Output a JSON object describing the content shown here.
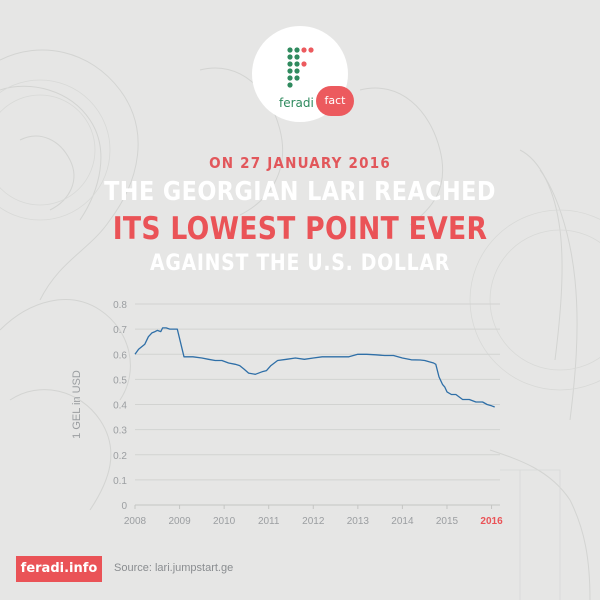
{
  "brand": {
    "logo_text": "feradi",
    "badge": "fact",
    "footer_label": "feradi.info"
  },
  "headline": {
    "date_line": "ON 27 JANUARY 2016",
    "line1": "THE GEORGIAN LARI REACHED",
    "line2": "ITS LOWEST POINT EVER",
    "line3": "AGAINST THE U.S. DOLLAR"
  },
  "source": "Source: lari.jumpstart.ge",
  "colors": {
    "accent": "#ea5357",
    "line": "#2f6fa7",
    "logo_green": "#2f8a5e",
    "background": "#e6e6e5"
  },
  "chart_data": {
    "type": "line",
    "xlabel": "",
    "ylabel": "1 GEL in USD",
    "xlim": [
      2008,
      2016.1
    ],
    "ylim": [
      0,
      0.8
    ],
    "x_ticks": [
      "2008",
      "2009",
      "2010",
      "2011",
      "2012",
      "2013",
      "2014",
      "2015",
      "2016"
    ],
    "y_ticks": [
      "0",
      "0.1",
      "0.2",
      "0.3",
      "0.4",
      "0.5",
      "0.6",
      "0.7",
      "0.8"
    ],
    "highlight_tick": "2016",
    "grid": true,
    "series": [
      {
        "x": [
          2008.0,
          2008.08,
          2008.15,
          2008.22,
          2008.3,
          2008.38,
          2008.45,
          2008.5,
          2008.58,
          2008.62,
          2008.7,
          2008.78,
          2008.85,
          2008.95,
          2009.1,
          2009.3,
          2009.5,
          2009.65,
          2009.8,
          2009.95,
          2010.1,
          2010.25,
          2010.35,
          2010.45,
          2010.55,
          2010.7,
          2010.85,
          2010.95,
          2011.05,
          2011.2,
          2011.4,
          2011.6,
          2011.8,
          2012.0,
          2012.2,
          2012.4,
          2012.6,
          2012.8,
          2013.0,
          2013.2,
          2013.4,
          2013.6,
          2013.8,
          2014.0,
          2014.2,
          2014.4,
          2014.5,
          2014.6,
          2014.7,
          2014.75,
          2014.82,
          2014.9,
          2014.95,
          2015.0,
          2015.1,
          2015.2,
          2015.35,
          2015.5,
          2015.65,
          2015.8,
          2015.9,
          2016.0,
          2016.07
        ],
        "y": [
          0.6,
          0.62,
          0.63,
          0.64,
          0.67,
          0.685,
          0.69,
          0.695,
          0.69,
          0.705,
          0.705,
          0.7,
          0.7,
          0.7,
          0.59,
          0.59,
          0.585,
          0.58,
          0.575,
          0.575,
          0.565,
          0.56,
          0.555,
          0.54,
          0.525,
          0.52,
          0.53,
          0.535,
          0.555,
          0.575,
          0.58,
          0.585,
          0.58,
          0.585,
          0.59,
          0.59,
          0.59,
          0.59,
          0.6,
          0.6,
          0.598,
          0.595,
          0.595,
          0.585,
          0.578,
          0.577,
          0.575,
          0.57,
          0.565,
          0.56,
          0.51,
          0.48,
          0.47,
          0.45,
          0.44,
          0.44,
          0.42,
          0.42,
          0.41,
          0.41,
          0.4,
          0.395,
          0.39
        ]
      }
    ]
  }
}
